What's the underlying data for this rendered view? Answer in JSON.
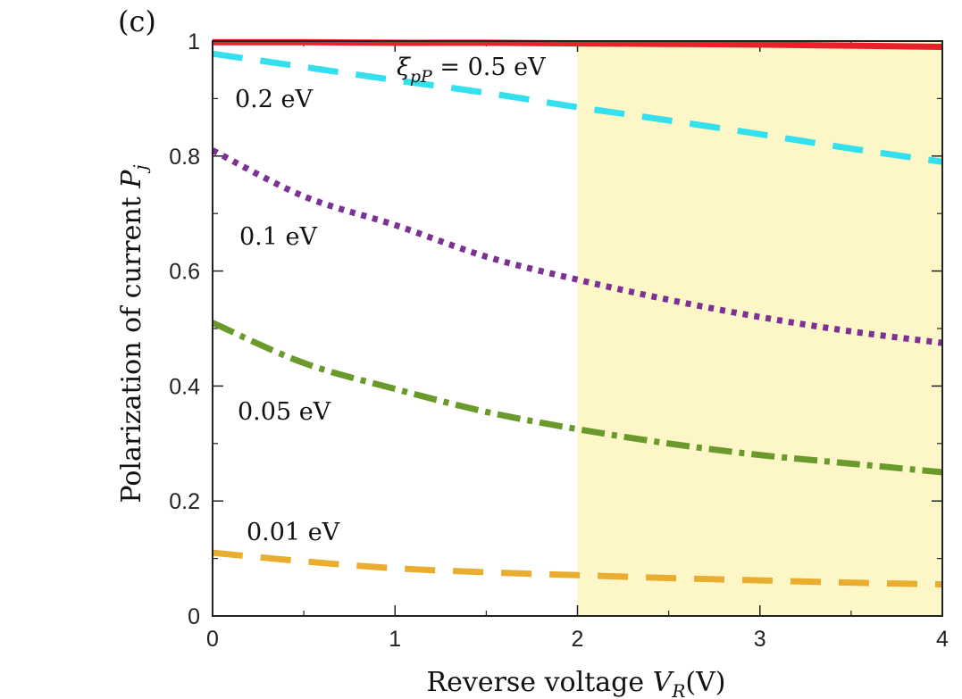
{
  "chart_data": {
    "type": "line",
    "panel_label": "(c)",
    "xlabel": "Reverse voltage",
    "xlabel_var": "V",
    "xlabel_sub": "R",
    "xlabel_unit": "(V)",
    "ylabel": "Polarization of current",
    "ylabel_var": "P",
    "ylabel_sub": "j",
    "xlim": [
      0,
      4
    ],
    "ylim": [
      0,
      1
    ],
    "xticks": [
      0,
      1,
      2,
      3,
      4
    ],
    "yticks": [
      0,
      0.2,
      0.4,
      0.6,
      0.8,
      1
    ],
    "ytick_labels": [
      "0",
      "0.2",
      "0.4",
      "0.6",
      "0.8",
      "1"
    ],
    "shaded_region": {
      "x_from": 2,
      "x_to": 4,
      "color": "#fdf7c8"
    },
    "x": [
      0,
      0.5,
      1,
      1.5,
      2,
      2.5,
      3,
      3.5,
      4
    ],
    "series": [
      {
        "name": "0.5 eV",
        "label": "0.5 eV",
        "label_prefix": "ξ",
        "label_sub": "pP",
        "label_eq": " = ",
        "color": "#e8222a",
        "style": "solid",
        "values": [
          0.998,
          0.998,
          0.997,
          0.997,
          0.996,
          0.995,
          0.994,
          0.992,
          0.99
        ]
      },
      {
        "name": "0.2 eV",
        "label": "0.2 eV",
        "color": "#34e0ee",
        "style": "dash",
        "values": [
          0.978,
          0.955,
          0.932,
          0.91,
          0.885,
          0.862,
          0.838,
          0.813,
          0.79
        ]
      },
      {
        "name": "0.1 eV",
        "label": "0.1 eV",
        "color": "#7b3294",
        "style": "dot",
        "values": [
          0.81,
          0.73,
          0.68,
          0.625,
          0.585,
          0.55,
          0.52,
          0.495,
          0.475
        ]
      },
      {
        "name": "0.05 eV",
        "label": "0.05 eV",
        "color": "#6a9a2c",
        "style": "dashdot",
        "values": [
          0.51,
          0.44,
          0.395,
          0.355,
          0.325,
          0.3,
          0.28,
          0.265,
          0.25
        ]
      },
      {
        "name": "0.01 eV",
        "label": "0.01 eV",
        "color": "#e9ae2f",
        "style": "dash",
        "values": [
          0.11,
          0.095,
          0.083,
          0.076,
          0.071,
          0.066,
          0.062,
          0.058,
          0.055
        ]
      }
    ]
  }
}
